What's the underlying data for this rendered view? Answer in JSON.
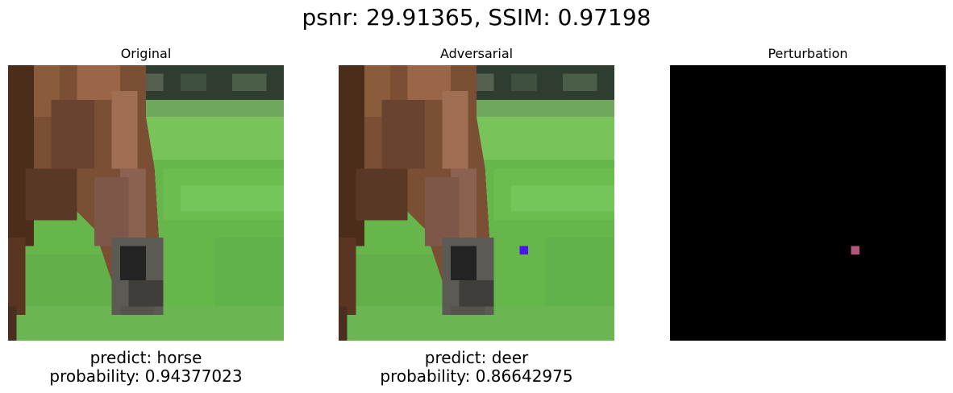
{
  "figure": {
    "suptitle": "psnr: 29.91365, SSIM: 0.97198"
  },
  "panels": [
    {
      "title": "Original",
      "predict_line": "predict: horse",
      "probability_line": "probability: 0.94377023"
    },
    {
      "title": "Adversarial",
      "predict_line": "predict: deer",
      "probability_line": "probability: 0.86642975"
    },
    {
      "title": "Perturbation"
    }
  ],
  "colors": {
    "grass": "#69b84e",
    "horse_brown": "#7a4f34",
    "perturbed_pixel": "#4a14f2",
    "perturbation_pixel": "#b2557a",
    "perturbation_background": "#000000"
  }
}
